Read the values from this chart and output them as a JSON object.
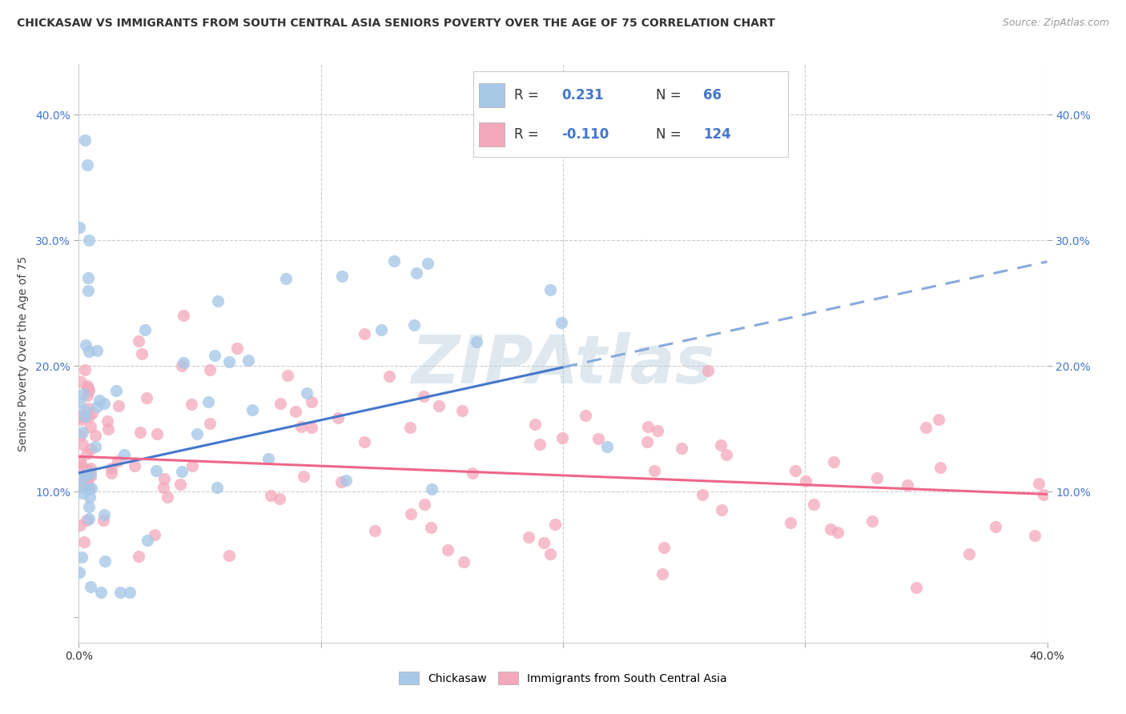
{
  "title": "CHICKASAW VS IMMIGRANTS FROM SOUTH CENTRAL ASIA SENIORS POVERTY OVER THE AGE OF 75 CORRELATION CHART",
  "source": "Source: ZipAtlas.com",
  "ylabel": "Seniors Poverty Over the Age of 75",
  "xlim": [
    0.0,
    0.4
  ],
  "ylim": [
    -0.02,
    0.44
  ],
  "chickasaw_color": "#a8c8e8",
  "immigrants_color": "#f4a8bc",
  "chickasaw_line_color": "#4477cc",
  "immigrants_line_color": "#ee6688",
  "dashed_line_color": "#88aadd",
  "R_chickasaw": 0.231,
  "N_chickasaw": 66,
  "R_immigrants": -0.11,
  "N_immigrants": 124,
  "watermark": "ZIPAtlas",
  "legend_label_1": "Chickasaw",
  "legend_label_2": "Immigrants from South Central Asia",
  "background_color": "#ffffff",
  "grid_color": "#cccccc",
  "tick_color": "#4477cc",
  "title_color": "#333333",
  "legend_text_color": "#333333",
  "legend_value_color": "#4477cc"
}
